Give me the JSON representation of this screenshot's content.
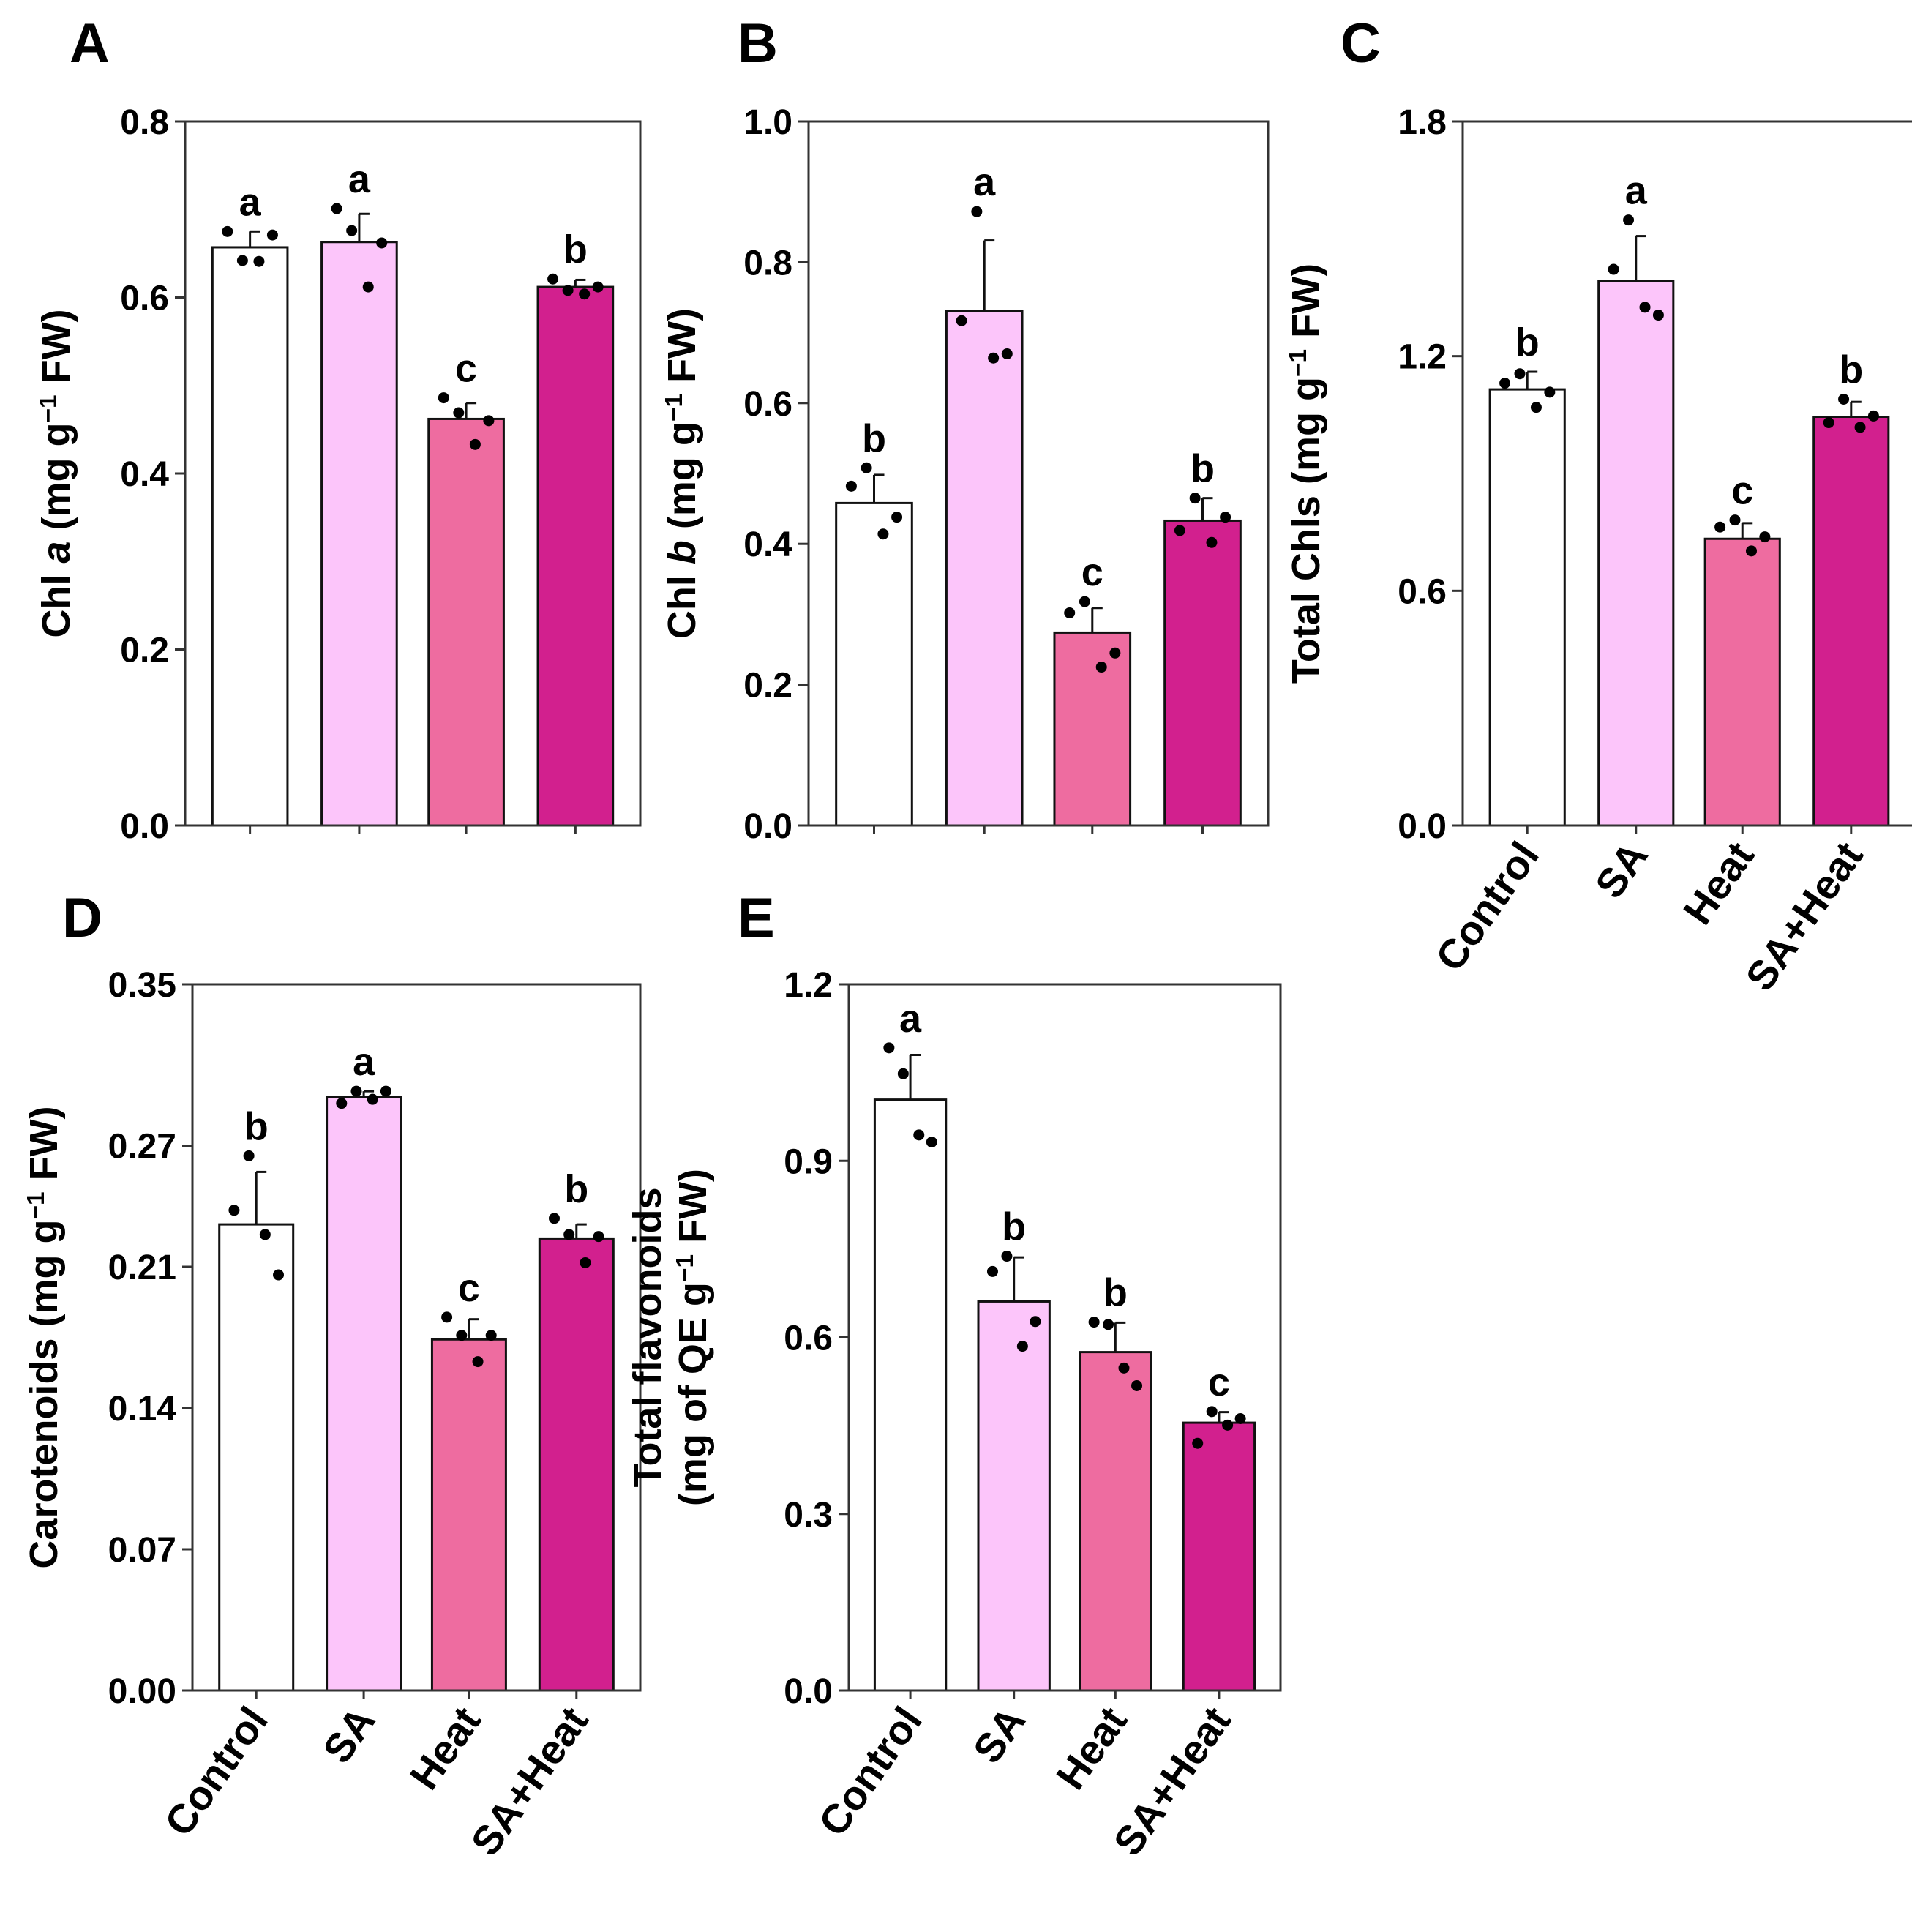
{
  "chart_data": [
    {
      "type": "bar",
      "panel_label": "A",
      "categories": [
        "Control",
        "SA",
        "Heat",
        "SA+Heat"
      ],
      "show_xticklabels": false,
      "ylabel": {
        "prefix": "Chl ",
        "italic": "a",
        "middle": " (mg g",
        "sup": "−1",
        "suffix": " FW)"
      },
      "ylim": [
        0,
        0.8
      ],
      "yticks": [
        "0.0",
        "0.2",
        "0.4",
        "0.6",
        "0.8"
      ],
      "values": [
        0.657,
        0.663,
        0.462,
        0.612
      ],
      "errors": [
        0.018,
        0.032,
        0.018,
        0.008
      ],
      "letters": [
        "a",
        "a",
        "c",
        "b"
      ],
      "points": [
        [
          0.675,
          0.642,
          0.641,
          0.671
        ],
        [
          0.701,
          0.676,
          0.612,
          0.662
        ],
        [
          0.486,
          0.469,
          0.433,
          0.46
        ],
        [
          0.621,
          0.608,
          0.604,
          0.612
        ]
      ]
    },
    {
      "type": "bar",
      "panel_label": "B",
      "categories": [
        "Control",
        "SA",
        "Heat",
        "SA+Heat"
      ],
      "show_xticklabels": false,
      "ylabel": {
        "prefix": "Chl ",
        "italic": "b",
        "middle": " (mg g",
        "sup": "−1",
        "suffix": " FW)"
      },
      "ylim": [
        0,
        1.0
      ],
      "yticks": [
        "0.0",
        "0.2",
        "0.4",
        "0.6",
        "0.8",
        "1.0"
      ],
      "values": [
        0.458,
        0.731,
        0.274,
        0.433
      ],
      "errors": [
        0.04,
        0.1,
        0.035,
        0.032
      ],
      "letters": [
        "b",
        "a",
        "c",
        "b"
      ],
      "points": [
        [
          0.482,
          0.508,
          0.414,
          0.438
        ],
        [
          0.717,
          0.872,
          0.664,
          0.67
        ],
        [
          0.302,
          0.318,
          0.225,
          0.245
        ],
        [
          0.419,
          0.465,
          0.402,
          0.438
        ]
      ]
    },
    {
      "type": "bar",
      "panel_label": "C",
      "categories": [
        "Control",
        "SA",
        "Heat",
        "SA+Heat"
      ],
      "show_xticklabels": true,
      "ylabel": {
        "prefix": "Total Chls",
        "italic": "",
        "middle": " (mg g",
        "sup": "−1",
        "suffix": " FW)"
      },
      "ylim": [
        0,
        1.8
      ],
      "yticks": [
        "0.0",
        "0.6",
        "1.2",
        "1.8"
      ],
      "values": [
        1.115,
        1.392,
        0.733,
        1.045
      ],
      "errors": [
        0.045,
        0.115,
        0.04,
        0.038
      ],
      "letters": [
        "b",
        "a",
        "c",
        "b"
      ],
      "points": [
        [
          1.131,
          1.155,
          1.069,
          1.108
        ],
        [
          1.422,
          1.548,
          1.325,
          1.305
        ],
        [
          0.763,
          0.781,
          0.702,
          0.738
        ],
        [
          1.03,
          1.09,
          1.018,
          1.047
        ]
      ]
    },
    {
      "type": "bar",
      "panel_label": "D",
      "categories": [
        "Control",
        "SA",
        "Heat",
        "SA+Heat"
      ],
      "show_xticklabels": true,
      "ylabel": {
        "prefix": "Carotenoids",
        "italic": "",
        "middle": " (mg g",
        "sup": "−1",
        "suffix": " FW)"
      },
      "ylim": [
        0,
        0.35
      ],
      "yticks": [
        "0.00",
        "0.07",
        "0.14",
        "0.21",
        "0.27",
        "0.35"
      ],
      "values": [
        0.231,
        0.294,
        0.174,
        0.224
      ],
      "errors": [
        0.026,
        0.003,
        0.01,
        0.007
      ],
      "letters": [
        "b",
        "a",
        "c",
        "b"
      ],
      "points": [
        [
          0.238,
          0.265,
          0.226,
          0.206
        ],
        [
          0.291,
          0.297,
          0.293,
          0.297
        ],
        [
          0.185,
          0.176,
          0.163,
          0.176
        ],
        [
          0.234,
          0.226,
          0.212,
          0.225
        ]
      ]
    },
    {
      "type": "bar",
      "panel_label": "E",
      "categories": [
        "Control",
        "SA",
        "Heat",
        "SA+Heat"
      ],
      "show_xticklabels": true,
      "ylabel_lines": [
        {
          "prefix": "Total flavonoids",
          "italic": "",
          "middle": "",
          "sup": "",
          "suffix": ""
        },
        {
          "prefix": "(mg of QE g",
          "italic": "",
          "middle": "",
          "sup": "−1",
          "suffix": " FW)"
        }
      ],
      "ylim": [
        0,
        1.2
      ],
      "yticks": [
        "0.0",
        "0.3",
        "0.6",
        "0.9",
        "1.2"
      ],
      "values": [
        1.004,
        0.661,
        0.575,
        0.455
      ],
      "errors": [
        0.076,
        0.075,
        0.05,
        0.018
      ],
      "letters": [
        "a",
        "b",
        "b",
        "c"
      ],
      "points": [
        [
          1.092,
          1.048,
          0.944,
          0.932
        ],
        [
          0.712,
          0.738,
          0.585,
          0.627
        ],
        [
          0.626,
          0.622,
          0.548,
          0.518
        ],
        [
          0.42,
          0.474,
          0.451,
          0.462
        ]
      ]
    }
  ],
  "colors": [
    "#ffffff",
    "#fcc5fa",
    "#ee6ca0",
    "#d2208e"
  ],
  "axis_color": "#333333",
  "point_color": "#000000"
}
